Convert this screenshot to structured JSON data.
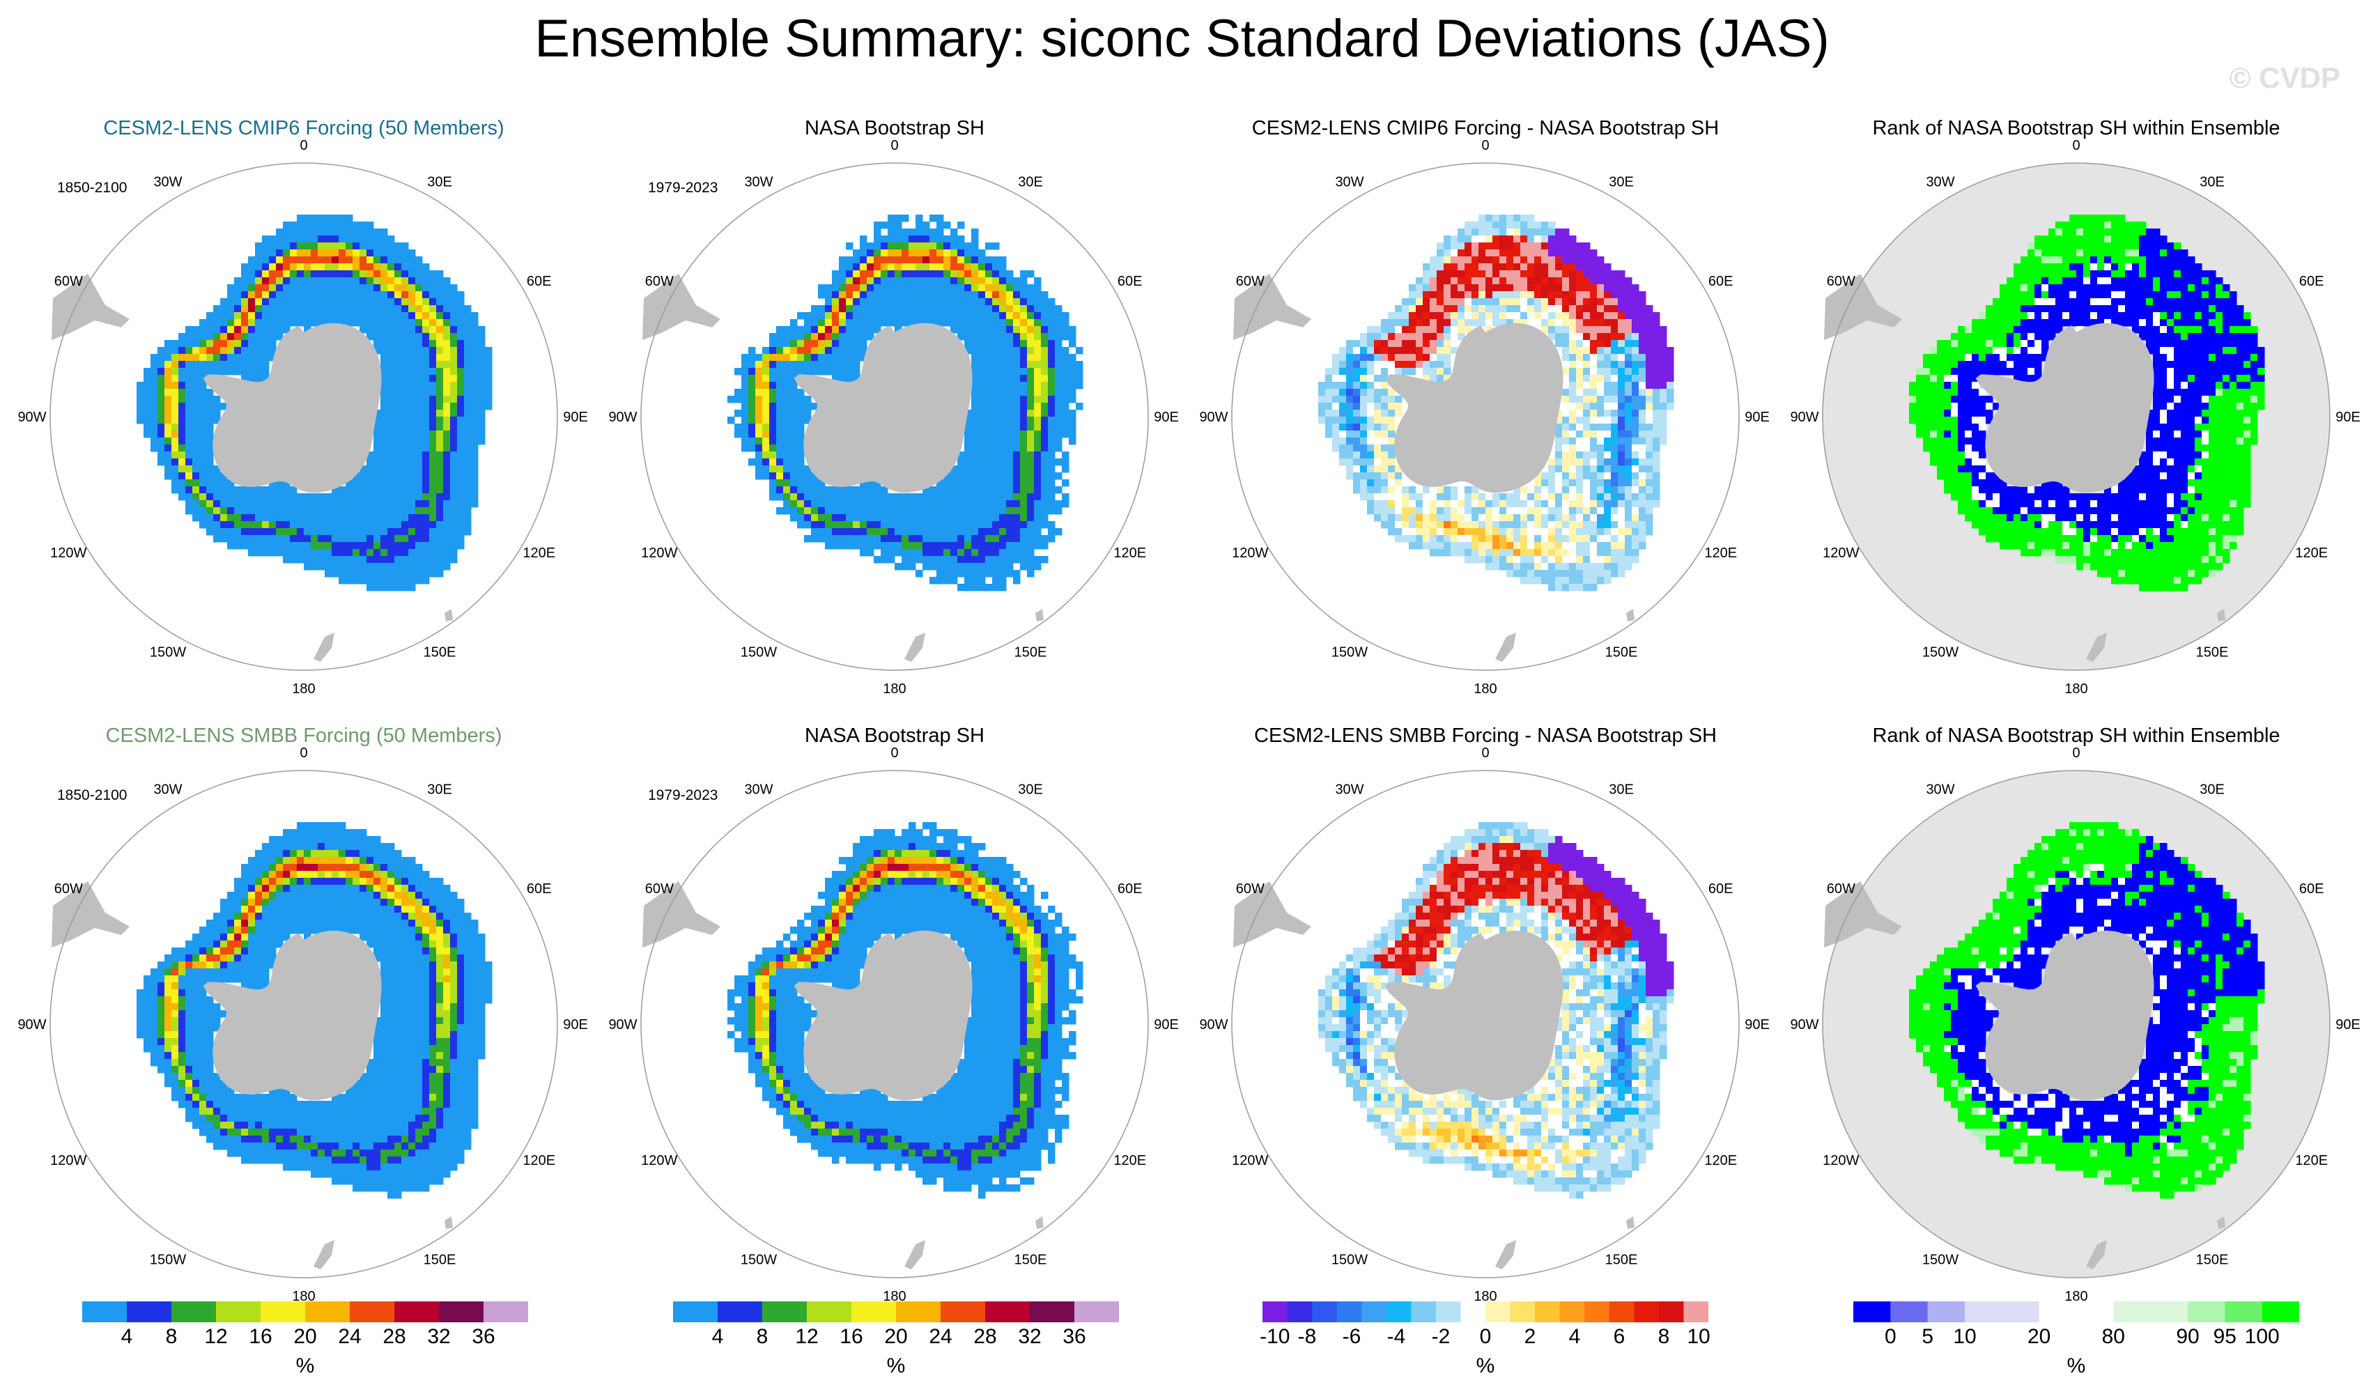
{
  "title": "Ensemble Summary: siconc Standard Deviations (JAS)",
  "watermark": "© CVDP",
  "colors": {
    "title_cmip6": "#1a6e8e",
    "title_smbb": "#6e9a6e",
    "land": "#bfbfbf",
    "rank_background": "#e4e4e4"
  },
  "longitude_labels": [
    "0",
    "30E",
    "60E",
    "90E",
    "120E",
    "150E",
    "180",
    "150W",
    "120W",
    "90W",
    "60W",
    "30W"
  ],
  "chart_data": [
    {
      "panel": "cmip6-ensemble",
      "type": "heatmap",
      "projection": "south-polar-stereographic",
      "title": "CESM2-LENS CMIP6 Forcing (50 Members)",
      "title_color": "#1a6e8e",
      "period": "1850-2100",
      "field": "sd",
      "variant": 1
    },
    {
      "panel": "nasa-bootstrap-top",
      "type": "heatmap",
      "projection": "south-polar-stereographic",
      "title": "NASA Bootstrap SH",
      "title_color": "#000000",
      "period": "1979-2023",
      "field": "sd_obs",
      "variant": 1
    },
    {
      "panel": "cmip6-minus-nasa",
      "type": "heatmap",
      "projection": "south-polar-stereographic",
      "title": "CESM2-LENS CMIP6 Forcing - NASA Bootstrap SH",
      "title_color": "#000000",
      "period": "",
      "field": "diff",
      "variant": 1
    },
    {
      "panel": "rank-cmip6",
      "type": "heatmap",
      "projection": "south-polar-stereographic",
      "title": "Rank of NASA Bootstrap SH within Ensemble",
      "title_color": "#000000",
      "period": "",
      "field": "rank",
      "variant": 1
    },
    {
      "panel": "smbb-ensemble",
      "type": "heatmap",
      "projection": "south-polar-stereographic",
      "title": "CESM2-LENS SMBB Forcing (50 Members)",
      "title_color": "#6e9a6e",
      "period": "1850-2100",
      "field": "sd",
      "variant": 2
    },
    {
      "panel": "nasa-bootstrap-bottom",
      "type": "heatmap",
      "projection": "south-polar-stereographic",
      "title": "NASA Bootstrap SH",
      "title_color": "#000000",
      "period": "1979-2023",
      "field": "sd_obs",
      "variant": 2
    },
    {
      "panel": "smbb-minus-nasa",
      "type": "heatmap",
      "projection": "south-polar-stereographic",
      "title": "CESM2-LENS SMBB Forcing - NASA Bootstrap SH",
      "title_color": "#000000",
      "period": "",
      "field": "diff",
      "variant": 2
    },
    {
      "panel": "rank-smbb",
      "type": "heatmap",
      "projection": "south-polar-stereographic",
      "title": "Rank of NASA Bootstrap SH within Ensemble",
      "title_color": "#000000",
      "period": "",
      "field": "rank",
      "variant": 2
    }
  ],
  "colorbars": [
    {
      "name": "sd-colorbar-1",
      "units": "%",
      "colors": [
        "#1e9bf0",
        "#1f33e6",
        "#2ea82e",
        "#b2df1a",
        "#f5f01e",
        "#f7b500",
        "#f04c0f",
        "#b8002e",
        "#780a50",
        "#c8a2d2"
      ],
      "tick_labels": [
        "4",
        "8",
        "12",
        "16",
        "20",
        "24",
        "28",
        "32",
        "36"
      ]
    },
    {
      "name": "sd-colorbar-2",
      "units": "%",
      "colors": [
        "#1e9bf0",
        "#1f33e6",
        "#2ea82e",
        "#b2df1a",
        "#f5f01e",
        "#f7b500",
        "#f04c0f",
        "#b8002e",
        "#780a50",
        "#c8a2d2"
      ],
      "tick_labels": [
        "4",
        "8",
        "12",
        "16",
        "20",
        "24",
        "28",
        "32",
        "36"
      ]
    },
    {
      "name": "diff-colorbar",
      "units": "%",
      "colors": [
        "#7a1fe6",
        "#3a2be6",
        "#2f58f0",
        "#2f7cf2",
        "#3ea0f2",
        "#12b6f5",
        "#7fcbf2",
        "#b8e2f6",
        "#ffffff",
        "#fff5b0",
        "#ffe26a",
        "#ffc431",
        "#ffa01e",
        "#ff7a12",
        "#f24a0a",
        "#e61b0c",
        "#d61212",
        "#f0a0a0"
      ],
      "tick_labels": [
        "-10",
        "-8",
        "-6",
        "-4",
        "-2",
        "0",
        "2",
        "4",
        "6",
        "8",
        "10"
      ]
    },
    {
      "name": "rank-colorbar",
      "units": "%",
      "colors": [
        "#0000ff",
        "#6a6af2",
        "#b0b0f5",
        "#dcdcf7",
        "#dcdcf7",
        "#ffffff",
        "#ffffff",
        "#ddf7dd",
        "#ddf7dd",
        "#b0f5b0",
        "#6af26a",
        "#00ff00"
      ],
      "tick_labels": [
        "0",
        "5",
        "10",
        "20",
        "80",
        "90",
        "95",
        "100"
      ]
    }
  ]
}
